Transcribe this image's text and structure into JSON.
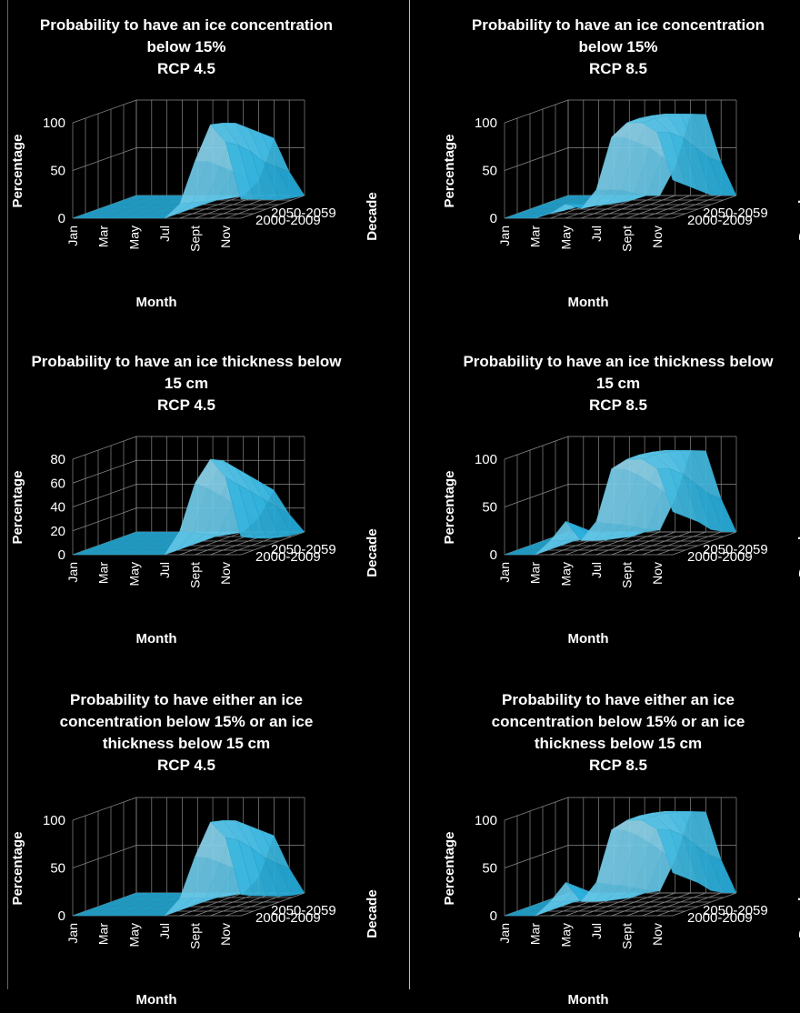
{
  "chart_data": [
    {
      "type": "surface",
      "title_lines": [
        "Probability to have an ice concentration",
        "below 15%",
        "RCP 4.5"
      ],
      "xlabel": "Month",
      "ylabel": "Percentage",
      "zlabel": "Decade",
      "month_ticks": [
        "Jan",
        "Mar",
        "May",
        "Jul",
        "Sept",
        "Nov"
      ],
      "decade_ticks": [
        "2050-2059",
        "2000-2009"
      ],
      "yticks": [
        "0",
        "50",
        "100"
      ],
      "ylim": [
        0,
        100
      ],
      "values": [
        [
          0,
          0,
          0,
          0,
          0,
          0,
          0,
          15,
          60,
          98,
          80,
          20
        ],
        [
          0,
          0,
          0,
          0,
          0,
          0,
          0,
          12,
          55,
          95,
          72,
          15
        ],
        [
          0,
          0,
          0,
          0,
          0,
          0,
          0,
          8,
          45,
          90,
          60,
          10
        ],
        [
          0,
          0,
          0,
          0,
          0,
          0,
          0,
          5,
          35,
          80,
          45,
          5
        ],
        [
          0,
          0,
          0,
          0,
          0,
          0,
          0,
          2,
          25,
          70,
          35,
          2
        ],
        [
          0,
          0,
          0,
          0,
          0,
          0,
          0,
          0,
          15,
          60,
          25,
          0
        ]
      ]
    },
    {
      "type": "surface",
      "title_lines": [
        "Probability to have an ice concentration",
        "below 15%",
        "RCP 8.5"
      ],
      "xlabel": "Month",
      "ylabel": "Percentage",
      "zlabel": "Decade",
      "month_ticks": [
        "Jan",
        "Mar",
        "May",
        "Jul",
        "Sept",
        "Nov"
      ],
      "decade_ticks": [
        "2050-2059",
        "2000-2009"
      ],
      "yticks": [
        "0",
        "50",
        "100"
      ],
      "ylim": [
        0,
        100
      ],
      "values": [
        [
          0,
          0,
          0,
          5,
          15,
          10,
          30,
          85,
          100,
          100,
          90,
          40
        ],
        [
          0,
          0,
          0,
          3,
          10,
          8,
          25,
          80,
          100,
          100,
          85,
          30
        ],
        [
          0,
          0,
          0,
          2,
          6,
          5,
          20,
          70,
          98,
          98,
          75,
          20
        ],
        [
          0,
          0,
          0,
          0,
          3,
          2,
          12,
          60,
          95,
          95,
          60,
          10
        ],
        [
          0,
          0,
          0,
          0,
          0,
          0,
          5,
          45,
          90,
          90,
          45,
          5
        ],
        [
          0,
          0,
          0,
          0,
          0,
          0,
          0,
          30,
          85,
          85,
          35,
          0
        ]
      ]
    },
    {
      "type": "surface",
      "title_lines": [
        "Probability to have an ice thickness below",
        "15 cm",
        "RCP 4.5"
      ],
      "xlabel": "Month",
      "ylabel": "Percentage",
      "zlabel": "Decade",
      "month_ticks": [
        "Jan",
        "Mar",
        "May",
        "Jul",
        "Sept",
        "Nov"
      ],
      "decade_ticks": [
        "2050-2059",
        "2000-2009"
      ],
      "yticks": [
        "0",
        "20",
        "40",
        "60",
        "80"
      ],
      "ylim": [
        0,
        80
      ],
      "values": [
        [
          0,
          0,
          0,
          0,
          0,
          0,
          0,
          20,
          60,
          80,
          65,
          15
        ],
        [
          0,
          0,
          0,
          0,
          0,
          0,
          0,
          15,
          52,
          75,
          55,
          10
        ],
        [
          0,
          0,
          0,
          0,
          0,
          0,
          0,
          10,
          42,
          65,
          45,
          6
        ],
        [
          0,
          0,
          0,
          0,
          0,
          0,
          0,
          5,
          32,
          55,
          35,
          3
        ],
        [
          0,
          0,
          0,
          0,
          0,
          0,
          0,
          2,
          22,
          45,
          25,
          1
        ],
        [
          0,
          0,
          0,
          0,
          0,
          0,
          0,
          0,
          12,
          35,
          15,
          0
        ]
      ]
    },
    {
      "type": "surface",
      "title_lines": [
        "Probability to have an ice thickness below",
        "15 cm",
        "RCP 8.5"
      ],
      "xlabel": "Month",
      "ylabel": "Percentage",
      "zlabel": "Decade",
      "month_ticks": [
        "Jan",
        "Mar",
        "May",
        "Jul",
        "Sept",
        "Nov"
      ],
      "decade_ticks": [
        "2050-2059",
        "2000-2009"
      ],
      "yticks": [
        "0",
        "50",
        "100"
      ],
      "ylim": [
        0,
        100
      ],
      "values": [
        [
          0,
          0,
          0,
          15,
          35,
          15,
          35,
          90,
          100,
          100,
          90,
          45
        ],
        [
          0,
          0,
          0,
          10,
          25,
          10,
          28,
          85,
          100,
          100,
          85,
          35
        ],
        [
          0,
          0,
          0,
          6,
          15,
          6,
          22,
          75,
          98,
          98,
          75,
          25
        ],
        [
          0,
          0,
          0,
          3,
          8,
          3,
          15,
          62,
          95,
          95,
          60,
          12
        ],
        [
          0,
          0,
          0,
          0,
          3,
          0,
          8,
          48,
          90,
          90,
          45,
          5
        ],
        [
          0,
          0,
          0,
          0,
          0,
          0,
          2,
          35,
          85,
          85,
          35,
          0
        ]
      ]
    },
    {
      "type": "surface",
      "title_lines": [
        "Probability to have either an ice",
        "concentration below 15% or an ice",
        "thickness below 15 cm",
        "RCP 4.5"
      ],
      "xlabel": "Month",
      "ylabel": "Percentage",
      "zlabel": "Decade",
      "month_ticks": [
        "Jan",
        "Mar",
        "May",
        "Jul",
        "Sept",
        "Nov"
      ],
      "decade_ticks": [
        "2050-2059",
        "2000-2009"
      ],
      "yticks": [
        "0",
        "50",
        "100"
      ],
      "ylim": [
        0,
        100
      ],
      "values": [
        [
          0,
          0,
          0,
          0,
          0,
          0,
          0,
          18,
          62,
          98,
          82,
          22
        ],
        [
          0,
          0,
          0,
          0,
          0,
          0,
          0,
          14,
          56,
          95,
          74,
          16
        ],
        [
          0,
          0,
          0,
          0,
          0,
          0,
          0,
          9,
          46,
          90,
          62,
          11
        ],
        [
          0,
          0,
          0,
          0,
          0,
          0,
          0,
          5,
          36,
          80,
          47,
          6
        ],
        [
          0,
          0,
          0,
          0,
          0,
          0,
          0,
          2,
          26,
          70,
          36,
          2
        ],
        [
          0,
          0,
          0,
          0,
          0,
          0,
          0,
          0,
          16,
          60,
          26,
          0
        ]
      ]
    },
    {
      "type": "surface",
      "title_lines": [
        "Probability to have either an ice",
        "concentration below 15% or an ice",
        "thickness below 15 cm",
        "RCP 8.5"
      ],
      "xlabel": "Month",
      "ylabel": "Percentage",
      "zlabel": "Decade",
      "month_ticks": [
        "Jan",
        "Mar",
        "May",
        "Jul",
        "Sept",
        "Nov"
      ],
      "decade_ticks": [
        "2050-2059",
        "2000-2009"
      ],
      "yticks": [
        "0",
        "50",
        "100"
      ],
      "ylim": [
        0,
        100
      ],
      "values": [
        [
          0,
          0,
          0,
          15,
          35,
          15,
          35,
          90,
          100,
          100,
          90,
          45
        ],
        [
          0,
          0,
          0,
          10,
          25,
          10,
          28,
          85,
          100,
          100,
          85,
          35
        ],
        [
          0,
          0,
          0,
          6,
          15,
          6,
          22,
          75,
          98,
          98,
          75,
          25
        ],
        [
          0,
          0,
          0,
          3,
          8,
          3,
          15,
          62,
          95,
          95,
          60,
          12
        ],
        [
          0,
          0,
          0,
          0,
          3,
          0,
          8,
          48,
          90,
          90,
          45,
          5
        ],
        [
          0,
          0,
          0,
          0,
          0,
          0,
          2,
          35,
          85,
          85,
          35,
          0
        ]
      ]
    }
  ]
}
